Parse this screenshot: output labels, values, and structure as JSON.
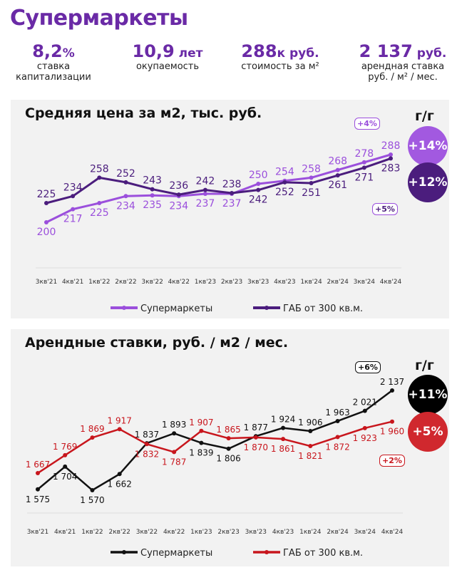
{
  "title": "Супермаркеты",
  "kpis": [
    {
      "value": "8,2",
      "unit": "%",
      "label": "ставка капитализации"
    },
    {
      "value": "10,9",
      "unit": " лет",
      "label": "окупаемость"
    },
    {
      "value": "288",
      "unit": "к руб.",
      "label": "стоимость за м²"
    },
    {
      "value": "2 137",
      "unit": " руб.",
      "label": "арендная ставка руб. / м² / мес."
    }
  ],
  "colors": {
    "accent": "#6a2aa6",
    "super_price": "#9b4fdc",
    "gab_price": "#4b1d7d",
    "super_rent": "#111111",
    "gab_rent": "#c8161d"
  },
  "chart_data": [
    {
      "type": "line",
      "title": "Средняя цена за м2, тыс. руб.",
      "categories": [
        "3кв'21",
        "4кв'21",
        "1кв'22",
        "2кв'22",
        "3кв'22",
        "4кв'22",
        "1кв'23",
        "2кв'23",
        "3кв'23",
        "4кв'23",
        "1кв'24",
        "2кв'24",
        "3кв'24",
        "4кв'24"
      ],
      "series": [
        {
          "name": "Супермаркеты",
          "color": "#9b4fdc",
          "values": [
            200,
            217,
            225,
            234,
            235,
            234,
            237,
            237,
            250,
            254,
            258,
            268,
            278,
            288
          ]
        },
        {
          "name": "ГАБ от 300 кв.м.",
          "color": "#4b1d7d",
          "values": [
            225,
            234,
            258,
            252,
            243,
            236,
            242,
            238,
            242,
            252,
            251,
            261,
            271,
            283
          ]
        }
      ],
      "yoy_label": "г/г",
      "yoy": [
        "+14%",
        "+12%"
      ],
      "qoq": [
        "+4%",
        "+5%"
      ],
      "legend": "bottom",
      "grid": false
    },
    {
      "type": "line",
      "title": "Арендные ставки, руб. / м2 / мес.",
      "categories": [
        "3кв'21",
        "4кв'21",
        "1кв'22",
        "2кв'22",
        "3кв'22",
        "4кв'22",
        "1кв'23",
        "2кв'23",
        "3кв'23",
        "4кв'23",
        "1кв'24",
        "2кв'24",
        "3кв'24",
        "4кв'24"
      ],
      "series": [
        {
          "name": "Супермаркеты",
          "color": "#111111",
          "values": [
            1575,
            1704,
            1570,
            1662,
            1837,
            1893,
            1839,
            1806,
            1877,
            1924,
            1906,
            1963,
            2021,
            2137
          ]
        },
        {
          "name": "ГАБ от 300 кв.м.",
          "color": "#c8161d",
          "values": [
            1667,
            1769,
            1869,
            1917,
            1832,
            1787,
            1907,
            1865,
            1870,
            1861,
            1821,
            1872,
            1923,
            1960
          ]
        }
      ],
      "yoy_label": "г/г",
      "yoy": [
        "+11%",
        "+5%"
      ],
      "qoq": [
        "+6%",
        "+2%"
      ],
      "legend": "bottom",
      "grid": false
    }
  ]
}
